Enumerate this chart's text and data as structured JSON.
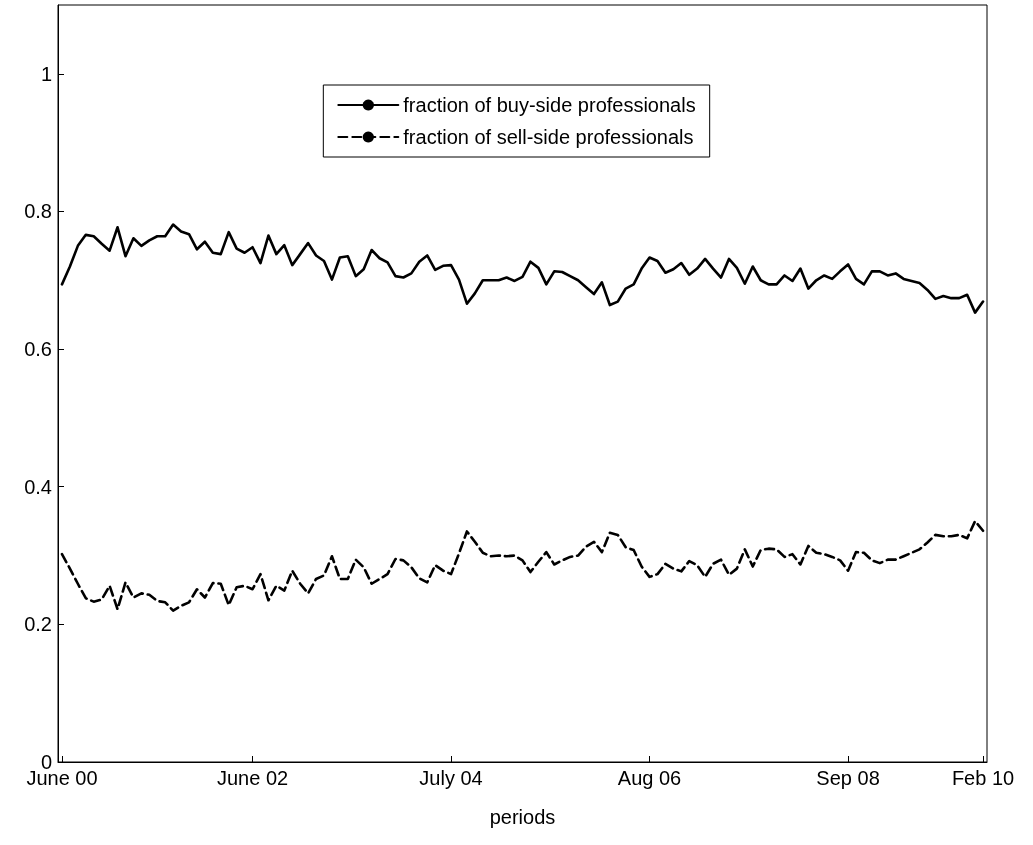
{
  "chart_data": {
    "type": "line",
    "xlabel": "periods",
    "categories": [
      "June 00",
      null,
      null,
      null,
      null,
      null,
      null,
      null,
      null,
      null,
      null,
      null,
      null,
      null,
      null,
      null,
      null,
      null,
      null,
      null,
      null,
      null,
      null,
      null,
      "June 02",
      null,
      null,
      null,
      null,
      null,
      null,
      null,
      null,
      null,
      null,
      null,
      null,
      null,
      null,
      null,
      null,
      null,
      null,
      null,
      null,
      null,
      null,
      null,
      null,
      "July 04",
      null,
      null,
      null,
      null,
      null,
      null,
      null,
      null,
      null,
      null,
      null,
      null,
      null,
      null,
      null,
      null,
      null,
      null,
      null,
      null,
      null,
      null,
      null,
      null,
      "Aug 06",
      null,
      null,
      null,
      null,
      null,
      null,
      null,
      null,
      null,
      null,
      null,
      null,
      null,
      null,
      null,
      null,
      null,
      null,
      null,
      null,
      null,
      null,
      null,
      null,
      "Sep 08",
      null,
      null,
      null,
      null,
      null,
      null,
      null,
      null,
      null,
      null,
      null,
      null,
      null,
      null,
      null,
      null,
      "Feb 10"
    ],
    "ylim": [
      0,
      1.1
    ],
    "yticks": [
      0,
      0.2,
      0.4,
      0.6,
      0.8,
      1
    ],
    "grid": false,
    "legend": "top",
    "marker": "none",
    "series": [
      {
        "name": "fraction of buy-side professionals",
        "color": "#000000",
        "line_style": "solid",
        "values": [
          0.694,
          0.72,
          0.75,
          0.766,
          0.764,
          0.753,
          0.743,
          0.777,
          0.735,
          0.761,
          0.75,
          0.758,
          0.764,
          0.764,
          0.781,
          0.771,
          0.767,
          0.745,
          0.756,
          0.74,
          0.738,
          0.77,
          0.746,
          0.74,
          0.748,
          0.725,
          0.765,
          0.738,
          0.751,
          0.722,
          0.738,
          0.754,
          0.736,
          0.728,
          0.701,
          0.733,
          0.735,
          0.706,
          0.716,
          0.744,
          0.732,
          0.726,
          0.706,
          0.704,
          0.71,
          0.727,
          0.736,
          0.715,
          0.721,
          0.722,
          0.701,
          0.666,
          0.681,
          0.7,
          0.7,
          0.7,
          0.704,
          0.699,
          0.705,
          0.727,
          0.718,
          0.694,
          0.713,
          0.712,
          0.706,
          0.7,
          0.69,
          0.68,
          0.697,
          0.664,
          0.669,
          0.688,
          0.694,
          0.717,
          0.733,
          0.728,
          0.711,
          0.716,
          0.725,
          0.708,
          0.717,
          0.731,
          0.717,
          0.704,
          0.731,
          0.718,
          0.695,
          0.72,
          0.7,
          0.694,
          0.694,
          0.707,
          0.699,
          0.717,
          0.688,
          0.7,
          0.707,
          0.702,
          0.713,
          0.723,
          0.702,
          0.694,
          0.713,
          0.713,
          0.707,
          0.71,
          0.702,
          0.699,
          0.696,
          0.686,
          0.673,
          0.677,
          0.674,
          0.674,
          0.679,
          0.653,
          0.669
        ]
      },
      {
        "name": "fraction of sell-side professionals",
        "color": "#000000",
        "line_style": "dashed",
        "values": [
          0.302,
          0.281,
          0.259,
          0.238,
          0.233,
          0.236,
          0.256,
          0.222,
          0.261,
          0.239,
          0.245,
          0.243,
          0.234,
          0.232,
          0.22,
          0.227,
          0.232,
          0.251,
          0.239,
          0.26,
          0.259,
          0.228,
          0.254,
          0.256,
          0.251,
          0.273,
          0.235,
          0.256,
          0.249,
          0.278,
          0.259,
          0.245,
          0.266,
          0.271,
          0.299,
          0.266,
          0.266,
          0.294,
          0.283,
          0.259,
          0.266,
          0.273,
          0.295,
          0.293,
          0.283,
          0.267,
          0.261,
          0.286,
          0.278,
          0.273,
          0.303,
          0.335,
          0.32,
          0.304,
          0.299,
          0.3,
          0.299,
          0.3,
          0.293,
          0.276,
          0.291,
          0.305,
          0.287,
          0.293,
          0.298,
          0.3,
          0.313,
          0.32,
          0.305,
          0.333,
          0.33,
          0.312,
          0.308,
          0.284,
          0.269,
          0.273,
          0.288,
          0.281,
          0.277,
          0.292,
          0.286,
          0.269,
          0.288,
          0.294,
          0.272,
          0.281,
          0.309,
          0.284,
          0.308,
          0.31,
          0.309,
          0.298,
          0.302,
          0.287,
          0.314,
          0.304,
          0.302,
          0.298,
          0.293,
          0.278,
          0.305,
          0.304,
          0.293,
          0.289,
          0.294,
          0.294,
          0.299,
          0.304,
          0.309,
          0.319,
          0.33,
          0.328,
          0.328,
          0.33,
          0.325,
          0.35,
          0.336
        ]
      }
    ]
  }
}
